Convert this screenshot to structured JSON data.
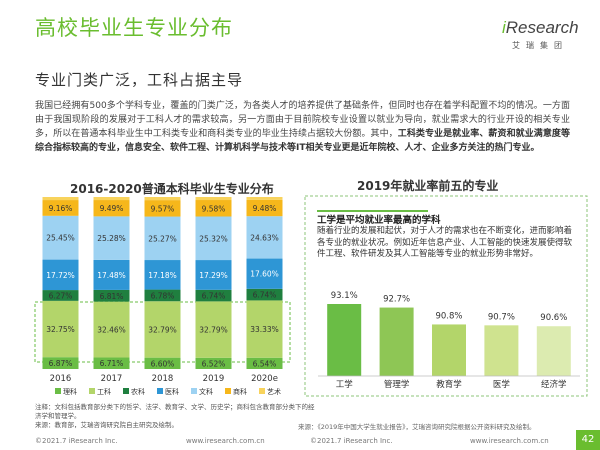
{
  "header": {
    "title": "高校毕业生专业分布",
    "subtitle": "专业门类广泛，工科占据主导",
    "logo_text_i": "i",
    "logo_text_rest": "Research",
    "logo_sub": "艾瑞集团"
  },
  "body": {
    "p1": "我国已经拥有500多个学科专业，覆盖的门类广泛，为各类人才的培养提供了基础条件，但同时也存在着学科配置不均的情况。一方面由于我国现阶段的发展对于工科人才的需求较高，另一方面由于目前院校专业设置以就业为导向，就业需求大的行业开设的相关专业多，所以在普通本科毕业生中工科类专业和商科类专业的毕业生持续占据较大份额。其中，",
    "p1_bold": "工科类专业是就业率、薪资和就业满意度等综合指标较高的专业，信息安全、软件工程、计算机科学与技术等IT相关专业更是近年院校、人才、企业多方关注的热门专业。"
  },
  "chart_data": [
    {
      "type": "bar",
      "stacked": true,
      "title": "2016-2020普通本科毕业生专业分布",
      "categories": [
        "2016",
        "2017",
        "2018",
        "2019",
        "2020e"
      ],
      "ylim": [
        0,
        100
      ],
      "series": [
        {
          "name": "理科",
          "color": "#6abd45",
          "values": [
            6.87,
            6.71,
            6.6,
            6.52,
            6.54
          ]
        },
        {
          "name": "工科",
          "color": "#b3d56a",
          "values": [
            32.75,
            32.46,
            32.79,
            32.79,
            33.33
          ]
        },
        {
          "name": "农科",
          "color": "#1f7f3f",
          "values": [
            6.27,
            6.81,
            6.78,
            6.74,
            6.74
          ]
        },
        {
          "name": "医科",
          "color": "#2e96d5",
          "values": [
            17.72,
            17.48,
            17.18,
            17.29,
            17.6
          ]
        },
        {
          "name": "文科",
          "color": "#9dd2f2",
          "values": [
            25.45,
            25.28,
            25.27,
            25.32,
            24.63
          ]
        },
        {
          "name": "商科",
          "color": "#f6b71b",
          "values": [
            9.16,
            9.49,
            9.57,
            9.58,
            9.48
          ]
        },
        {
          "name": "艺术",
          "color": "#f8d35c",
          "values": [
            1.78,
            1.77,
            1.81,
            1.76,
            1.68
          ]
        }
      ],
      "labels": [
        [
          "6.87%",
          "6.71%",
          "6.60%",
          "6.52%",
          "6.54%"
        ],
        [
          "32.75%",
          "32.46%",
          "32.79%",
          "32.79%",
          "33.33%"
        ],
        [
          "6.27%",
          "6.81%",
          "6.78%",
          "6.74%",
          "6.74%"
        ],
        [
          "17.72%",
          "17.48%",
          "17.18%",
          "17.29%",
          "17.60%"
        ],
        [
          "25.45%",
          "25.28%",
          "25.27%",
          "25.32%",
          "24.63%"
        ],
        [
          "9.16%",
          "9.49%",
          "9.57%",
          "9.58%",
          "9.48%"
        ]
      ],
      "legend": [
        "理科",
        "工科",
        "农科",
        "医科",
        "文科",
        "商科",
        "艺术"
      ],
      "legend_position": "bottom"
    },
    {
      "type": "bar",
      "title": "2019年就业率前五的专业",
      "categories": [
        "工学",
        "管理学",
        "教育学",
        "医学",
        "经济学"
      ],
      "values": [
        93.1,
        92.7,
        90.8,
        90.7,
        90.6
      ],
      "value_labels": [
        "93.1%",
        "92.7%",
        "90.8%",
        "90.7%",
        "90.6%"
      ],
      "ylim": [
        0,
        100
      ],
      "colors": [
        "#6abd45",
        "#8ec655",
        "#b3d56a",
        "#cfe38f",
        "#dcebb0"
      ]
    }
  ],
  "callout": {
    "title": "工学是平均就业率最高的学科",
    "body": "随着行业的发展和起伏，对于人才的需求也在不断变化，进而影响着各专业的就业状况。例如近年信息产业、人工智能的快速发展使得软件工程、软件研发及其人工智能等专业的就业形势非常好。"
  },
  "notes": {
    "line1": "注释：文科包括教育部分类下的哲学、法学、教育学、文学、历史学；商科包含教育部分类下的经济学和管理学。",
    "line2": "来源：教育部，艾瑞咨询研究院自主研究及绘制。",
    "right": "来源：《2019年中国大学生就业报告》，艾瑞咨询研究院根据公开资料研究及绘制。"
  },
  "footer": {
    "left_copy": "©2021.7 iResearch Inc.",
    "left_url": "www.iresearch.com.cn",
    "right_copy": "©2021.7 iResearch Inc.",
    "right_url": "www.iresearch.com.cn",
    "page": "42"
  }
}
